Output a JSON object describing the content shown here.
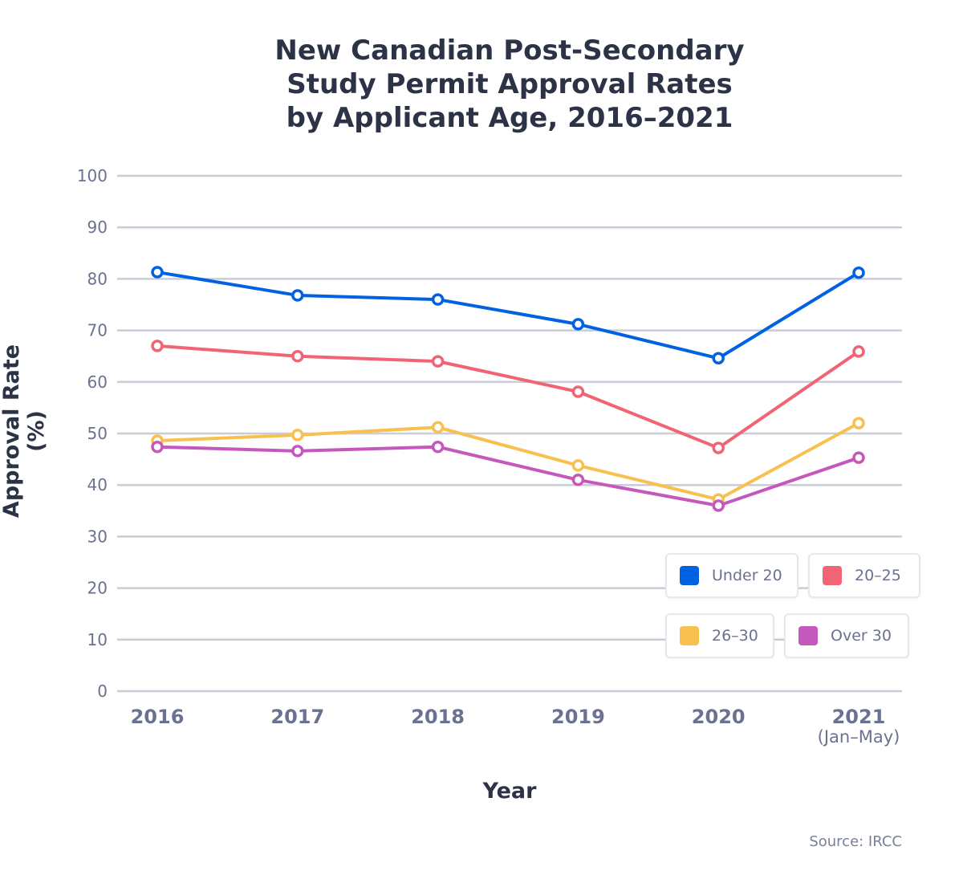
{
  "chart_data": {
    "type": "line",
    "title": "New Canadian Post-Secondary\nStudy Permit Approval Rates\nby Applicant Age, 2016–2021",
    "xlabel": "Year",
    "ylabel": "Approval Rate (%)",
    "categories": [
      "2016",
      "2017",
      "2018",
      "2019",
      "2020",
      "2021"
    ],
    "category_sublabels": [
      "",
      "",
      "",
      "",
      "",
      "(Jan–May)"
    ],
    "ylim": [
      0,
      100
    ],
    "yticks": [
      0,
      10,
      20,
      30,
      40,
      50,
      60,
      70,
      80,
      90,
      100
    ],
    "grid": true,
    "legend_position": "bottom-right",
    "series": [
      {
        "name": "Under 20",
        "color": "#0062e0",
        "values": [
          81.3,
          76.8,
          76.0,
          71.2,
          64.6,
          81.2
        ]
      },
      {
        "name": "20–25",
        "color": "#f06473",
        "values": [
          67.0,
          65.0,
          64.0,
          58.1,
          47.2,
          65.9
        ]
      },
      {
        "name": "26–30",
        "color": "#f7c04f",
        "values": [
          48.6,
          49.7,
          51.2,
          43.8,
          37.2,
          52.0
        ]
      },
      {
        "name": "Over 30",
        "color": "#c558bb",
        "values": [
          47.4,
          46.6,
          47.4,
          41.0,
          36.0,
          45.3
        ]
      }
    ],
    "source": "Source: IRCC"
  }
}
